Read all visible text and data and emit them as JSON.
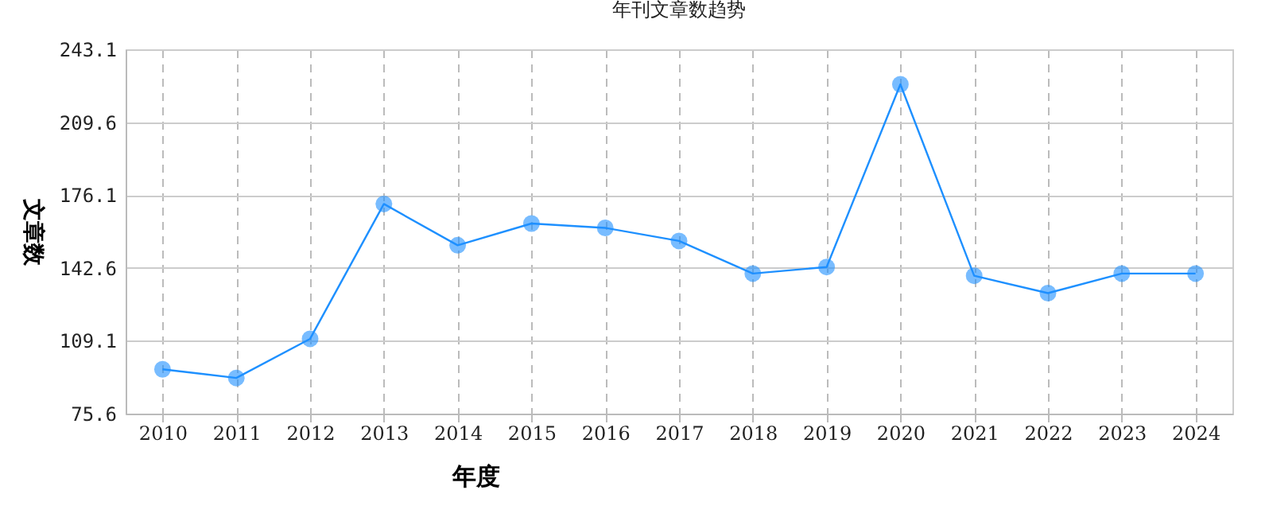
{
  "chart_data": {
    "type": "line",
    "title": "年刊文章数趋势",
    "xlabel": "年度",
    "ylabel": "文章数",
    "categories": [
      "2010",
      "2011",
      "2012",
      "2013",
      "2014",
      "2015",
      "2016",
      "2017",
      "2018",
      "2019",
      "2020",
      "2021",
      "2022",
      "2023",
      "2024"
    ],
    "series": [
      {
        "color": "#1e90ff",
        "values": [
          96,
          92,
          110,
          172,
          153,
          163,
          161,
          155,
          140,
          143,
          227,
          139,
          131,
          140,
          140
        ]
      }
    ],
    "ylim": [
      75.6,
      243.1
    ],
    "yticks": [
      75.6,
      109.1,
      142.6,
      176.1,
      209.6,
      243.1
    ],
    "grid": true,
    "marker": "circle"
  }
}
